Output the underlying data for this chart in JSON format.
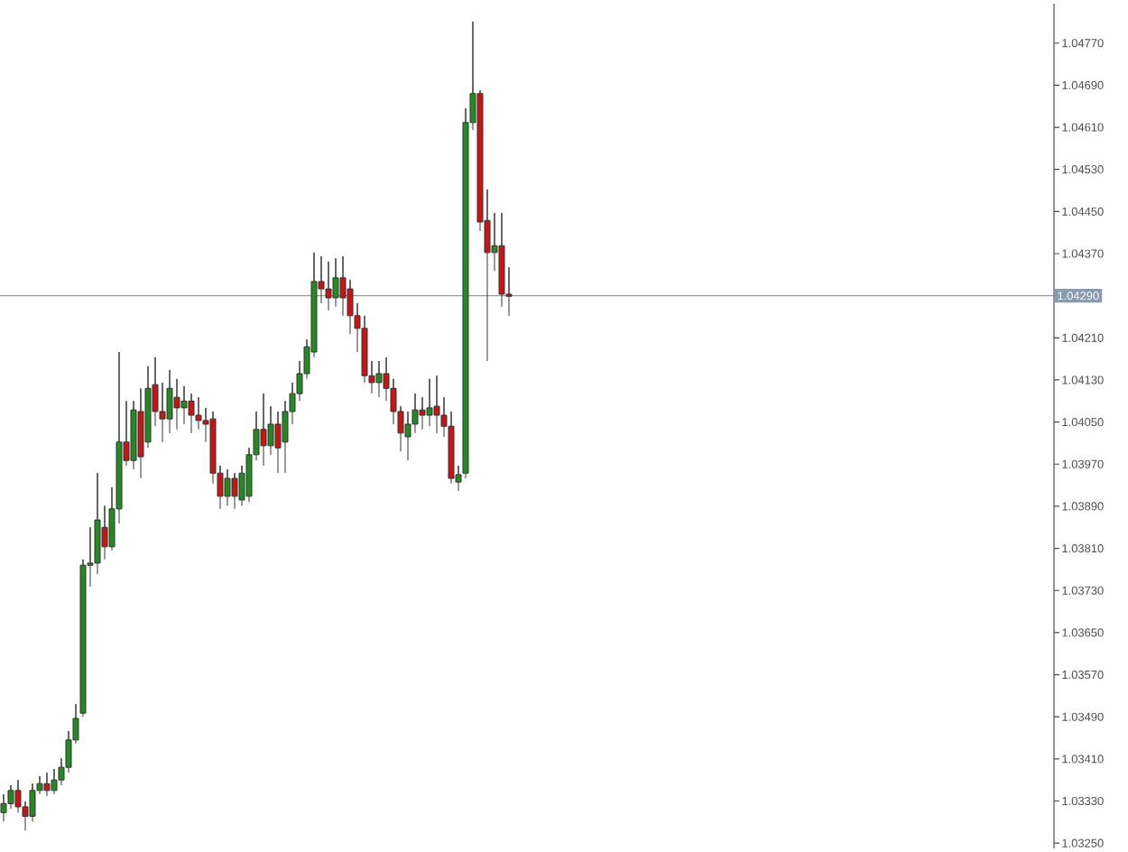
{
  "chart_data": {
    "type": "candlestick",
    "categories": [
      null,
      null,
      null,
      null,
      null,
      null,
      null,
      null,
      null,
      null,
      null,
      null,
      null,
      null,
      null,
      null,
      null,
      null,
      null,
      null,
      null,
      null,
      null,
      null,
      null,
      null,
      null,
      null,
      null,
      null,
      null,
      null,
      null,
      null,
      null,
      null,
      null,
      null,
      null,
      null,
      null,
      null,
      null,
      null,
      null,
      null,
      null,
      null,
      null,
      null,
      null,
      null,
      null,
      null,
      null,
      null,
      null,
      null,
      null,
      null,
      null,
      null,
      null,
      null,
      null,
      null,
      null,
      null,
      null,
      null,
      null,
      null,
      null,
      null,
      null,
      null,
      null,
      null,
      null,
      null,
      null,
      null,
      null,
      null,
      null,
      null,
      null,
      null,
      null,
      null,
      null,
      null,
      null,
      null,
      null,
      null,
      null,
      null,
      null,
      null,
      null,
      null,
      null,
      null,
      null,
      null,
      null,
      null,
      null,
      null,
      null,
      null,
      null,
      null,
      null,
      null,
      null,
      null,
      null,
      null,
      null,
      null,
      null,
      null,
      null,
      null,
      null,
      null,
      null,
      null,
      null,
      null,
      null,
      null,
      null,
      null,
      null,
      null,
      null,
      null,
      null,
      null,
      null,
      null,
      null,
      null
    ],
    "ohlc": [
      [
        1.03308,
        1.03343,
        1.03291,
        1.03325
      ],
      [
        1.03325,
        1.0336,
        1.03315,
        1.0335
      ],
      [
        1.0335,
        1.0337,
        1.03308,
        1.03319
      ],
      [
        1.03319,
        1.03329,
        1.03274,
        1.03301
      ],
      [
        1.03301,
        1.03363,
        1.03291,
        1.0335
      ],
      [
        1.0335,
        1.03377,
        1.03343,
        1.03363
      ],
      [
        1.03363,
        1.03384,
        1.03339,
        1.0335
      ],
      [
        1.0335,
        1.03391,
        1.03343,
        1.0337
      ],
      [
        1.0337,
        1.03411,
        1.0336,
        1.03394
      ],
      [
        1.03394,
        1.03463,
        1.03384,
        1.03446
      ],
      [
        1.03446,
        1.03514,
        1.03439,
        1.03487
      ],
      [
        1.03497,
        1.03789,
        1.0349,
        1.03778
      ],
      [
        1.03778,
        1.0385,
        1.03737,
        1.03782
      ],
      [
        1.03782,
        1.03953,
        1.03761,
        1.03864
      ],
      [
        1.0385,
        1.03891,
        1.03789,
        1.03813
      ],
      [
        1.03813,
        1.03926,
        1.03806,
        1.03885
      ],
      [
        1.03885,
        1.04183,
        1.03857,
        1.04012
      ],
      [
        1.04012,
        1.0409,
        1.03967,
        1.03977
      ],
      [
        1.03977,
        1.0409,
        1.0396,
        1.04073
      ],
      [
        1.0407,
        1.04114,
        1.03943,
        1.03984
      ],
      [
        1.04012,
        1.04156,
        1.04001,
        1.04114
      ],
      [
        1.04121,
        1.04173,
        1.04042,
        1.0407
      ],
      [
        1.0407,
        1.04125,
        1.04012,
        1.04056
      ],
      [
        1.04056,
        1.04149,
        1.04029,
        1.04114
      ],
      [
        1.04097,
        1.04132,
        1.04036,
        1.04077
      ],
      [
        1.04077,
        1.04118,
        1.04046,
        1.0409
      ],
      [
        1.0409,
        1.04104,
        1.04029,
        1.04063
      ],
      [
        1.04063,
        1.04097,
        1.04036,
        1.04053
      ],
      [
        1.04053,
        1.04077,
        1.04012,
        1.04046
      ],
      [
        1.04056,
        1.0407,
        1.03933,
        1.03953
      ],
      [
        1.03953,
        1.03967,
        1.03885,
        1.03909
      ],
      [
        1.03909,
        1.0396,
        1.03891,
        1.03943
      ],
      [
        1.03943,
        1.03953,
        1.03885,
        1.03909
      ],
      [
        1.03902,
        1.03967,
        1.03891,
        1.03953
      ],
      [
        1.03909,
        1.04001,
        1.03898,
        1.03988
      ],
      [
        1.03988,
        1.0407,
        1.03977,
        1.04036
      ],
      [
        1.04036,
        1.04104,
        1.03967,
        1.04005
      ],
      [
        1.04005,
        1.0408,
        1.03988,
        1.04046
      ],
      [
        1.04046,
        1.0407,
        1.03953,
        1.04001
      ],
      [
        1.04012,
        1.0409,
        1.03953,
        1.0407
      ],
      [
        1.0407,
        1.04125,
        1.04046,
        1.04104
      ],
      [
        1.04104,
        1.04166,
        1.0409,
        1.04142
      ],
      [
        1.04142,
        1.04207,
        1.04132,
        1.04193
      ],
      [
        1.04183,
        1.04372,
        1.04173,
        1.04317
      ],
      [
        1.04317,
        1.04365,
        1.04276,
        1.04303
      ],
      [
        1.04303,
        1.04355,
        1.04262,
        1.04286
      ],
      [
        1.04286,
        1.04361,
        1.04269,
        1.04324
      ],
      [
        1.04324,
        1.04365,
        1.04252,
        1.04286
      ],
      [
        1.04303,
        1.0432,
        1.04217,
        1.04252
      ],
      [
        1.04252,
        1.04276,
        1.04183,
        1.04228
      ],
      [
        1.04228,
        1.04252,
        1.04125,
        1.04138
      ],
      [
        1.04138,
        1.04166,
        1.04104,
        1.04125
      ],
      [
        1.04125,
        1.04166,
        1.04097,
        1.04142
      ],
      [
        1.04142,
        1.04173,
        1.0409,
        1.04114
      ],
      [
        1.04114,
        1.04132,
        1.04046,
        1.0407
      ],
      [
        1.0407,
        1.0408,
        1.03994,
        1.04029
      ],
      [
        1.04022,
        1.0407,
        1.03977,
        1.04046
      ],
      [
        1.04046,
        1.04104,
        1.04029,
        1.04073
      ],
      [
        1.04073,
        1.04097,
        1.04036,
        1.04063
      ],
      [
        1.04063,
        1.04132,
        1.04042,
        1.04077
      ],
      [
        1.0408,
        1.04138,
        1.04029,
        1.04063
      ],
      [
        1.04063,
        1.04097,
        1.04022,
        1.04042
      ],
      [
        1.04042,
        1.0407,
        1.03933,
        1.03943
      ],
      [
        1.03936,
        1.03967,
        1.03919,
        1.0395
      ],
      [
        1.03953,
        1.04646,
        1.03943,
        1.04619
      ],
      [
        1.04619,
        1.04811,
        1.04605,
        1.04674
      ],
      [
        1.04674,
        1.0468,
        1.04413,
        1.0443
      ],
      [
        1.04433,
        1.04492,
        1.04166,
        1.04372
      ],
      [
        1.04372,
        1.04447,
        1.04337,
        1.04385
      ],
      [
        1.04385,
        1.04447,
        1.04269,
        1.04293
      ],
      [
        1.04293,
        1.04344,
        1.04252,
        1.04289
      ],
      null,
      null,
      null,
      null,
      null,
      null,
      null,
      null,
      null,
      null,
      null,
      null,
      null,
      null,
      null,
      null,
      null,
      null,
      null,
      null,
      null,
      null,
      null,
      null,
      null,
      null,
      null,
      null,
      null,
      null,
      null,
      null,
      null,
      null,
      null,
      null,
      null,
      null,
      null,
      null,
      null,
      null,
      null,
      null,
      null,
      null,
      null,
      null,
      null,
      null,
      null,
      null,
      null,
      null,
      null,
      null,
      null,
      null,
      null,
      null,
      null,
      null,
      null,
      null,
      null,
      null,
      null,
      null,
      null,
      null,
      null,
      null,
      null,
      null,
      null
    ],
    "ylim": [
      1.0324,
      1.04845
    ],
    "yticks": [
      {
        "value": 1.0325,
        "label": "1.03250"
      },
      {
        "value": 1.0333,
        "label": "1.03330"
      },
      {
        "value": 1.0341,
        "label": "1.03410"
      },
      {
        "value": 1.0349,
        "label": "1.03490"
      },
      {
        "value": 1.0357,
        "label": "1.03570"
      },
      {
        "value": 1.0365,
        "label": "1.03650"
      },
      {
        "value": 1.0373,
        "label": "1.03730"
      },
      {
        "value": 1.0381,
        "label": "1.03810"
      },
      {
        "value": 1.0389,
        "label": "1.03890"
      },
      {
        "value": 1.0397,
        "label": "1.03970"
      },
      {
        "value": 1.0405,
        "label": "1.04050"
      },
      {
        "value": 1.0413,
        "label": "1.04130"
      },
      {
        "value": 1.0421,
        "label": "1.04210"
      },
      {
        "value": 1.0429,
        "label": null
      },
      {
        "value": 1.0437,
        "label": "1.04370"
      },
      {
        "value": 1.0445,
        "label": "1.04450"
      },
      {
        "value": 1.0453,
        "label": "1.04530"
      },
      {
        "value": 1.0461,
        "label": "1.04610"
      },
      {
        "value": 1.0469,
        "label": "1.04690"
      },
      {
        "value": 1.0477,
        "label": "1.04770"
      }
    ],
    "ref_lines": [
      {
        "axis": "y",
        "value": 1.0429,
        "label": "1.04290",
        "color": "#8a9bb0"
      }
    ],
    "tick_labels": "y",
    "grid": false
  }
}
